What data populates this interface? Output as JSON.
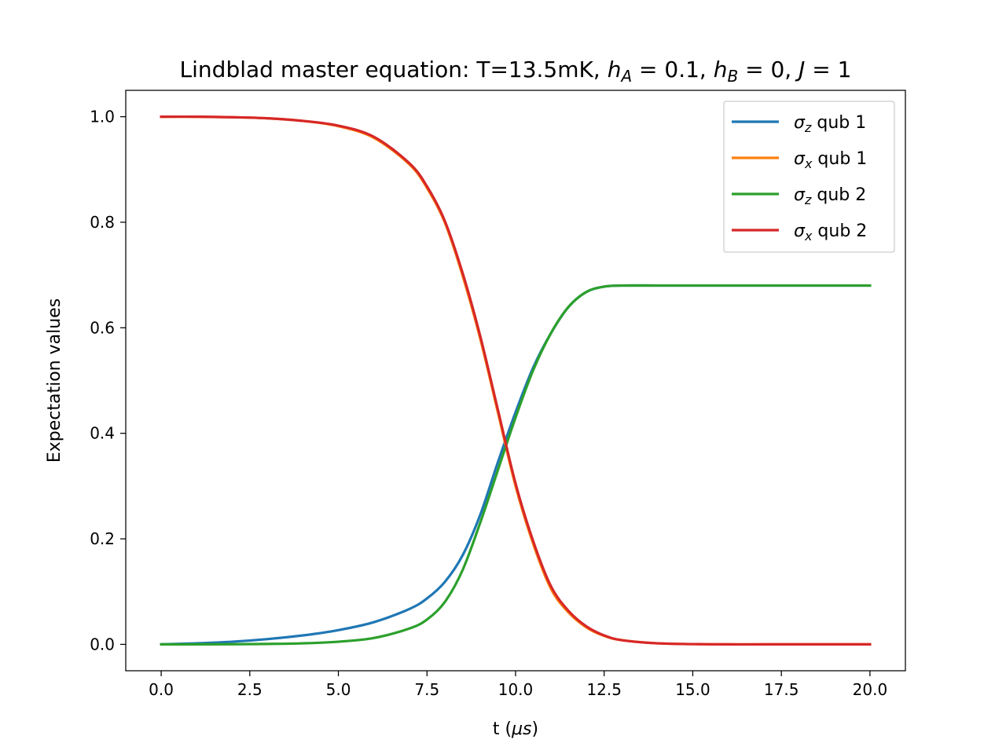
{
  "chart_data": {
    "type": "line",
    "title": {
      "prefix": "Lindblad master equation: T=13.5mK, ",
      "segments": [
        {
          "var": "h",
          "sub": "A",
          "rest": " = 0.1, "
        },
        {
          "var": "h",
          "sub": "B",
          "rest": " = 0, "
        },
        {
          "var": "J",
          "sub": "",
          "rest": " = 1"
        }
      ]
    },
    "xlabel": {
      "prefix": "t (",
      "greek": "μs",
      "suffix": ")"
    },
    "ylabel": "Expectation values",
    "xlim": [
      -1.0,
      21.0
    ],
    "ylim": [
      -0.05,
      1.05
    ],
    "xticks": [
      0.0,
      2.5,
      5.0,
      7.5,
      10.0,
      12.5,
      15.0,
      17.5,
      20.0
    ],
    "xtick_labels": [
      "0.0",
      "2.5",
      "5.0",
      "7.5",
      "10.0",
      "12.5",
      "15.0",
      "17.5",
      "20.0"
    ],
    "yticks": [
      0.0,
      0.2,
      0.4,
      0.6,
      0.8,
      1.0
    ],
    "ytick_labels": [
      "0.0",
      "0.2",
      "0.4",
      "0.6",
      "0.8",
      "1.0"
    ],
    "grid": false,
    "legend_position": "top-right",
    "x": [
      0,
      1,
      2,
      3,
      4,
      5,
      6,
      7,
      7.5,
      8,
      8.5,
      9,
      9.5,
      10,
      10.5,
      11,
      11.5,
      12,
      12.5,
      13,
      14,
      15,
      16,
      17,
      18,
      19,
      20
    ],
    "series": [
      {
        "greek": "σ",
        "sub": "z",
        "name": "qub 1",
        "color": "#1f77b4",
        "values": [
          0.0,
          0.002,
          0.005,
          0.01,
          0.017,
          0.027,
          0.042,
          0.067,
          0.087,
          0.118,
          0.168,
          0.245,
          0.345,
          0.44,
          0.525,
          0.59,
          0.64,
          0.668,
          0.678,
          0.68,
          0.68,
          0.68,
          0.68,
          0.68,
          0.68,
          0.68,
          0.68
        ]
      },
      {
        "greek": "σ",
        "sub": "x",
        "name": "qub 1",
        "color": "#ff7f0e",
        "values": [
          1.0,
          1.0,
          0.999,
          0.997,
          0.992,
          0.982,
          0.96,
          0.91,
          0.865,
          0.8,
          0.7,
          0.58,
          0.44,
          0.3,
          0.19,
          0.105,
          0.06,
          0.032,
          0.016,
          0.008,
          0.002,
          0.0005,
          0.0,
          0.0,
          0.0,
          0.0,
          0.0
        ]
      },
      {
        "greek": "σ",
        "sub": "z",
        "name": "qub 2",
        "color": "#2ca02c",
        "values": [
          0.0,
          0.0,
          0.0002,
          0.0008,
          0.002,
          0.005,
          0.012,
          0.03,
          0.047,
          0.08,
          0.14,
          0.23,
          0.33,
          0.43,
          0.52,
          0.59,
          0.64,
          0.668,
          0.678,
          0.68,
          0.68,
          0.68,
          0.68,
          0.68,
          0.68,
          0.68,
          0.68
        ]
      },
      {
        "greek": "σ",
        "sub": "x",
        "name": "qub 2",
        "color": "#d62728",
        "values": [
          1.0,
          1.0,
          0.999,
          0.997,
          0.992,
          0.983,
          0.962,
          0.912,
          0.868,
          0.803,
          0.705,
          0.585,
          0.445,
          0.305,
          0.195,
          0.11,
          0.063,
          0.034,
          0.017,
          0.008,
          0.002,
          0.0005,
          0.0,
          0.0,
          0.0,
          0.0,
          0.0
        ]
      }
    ]
  }
}
